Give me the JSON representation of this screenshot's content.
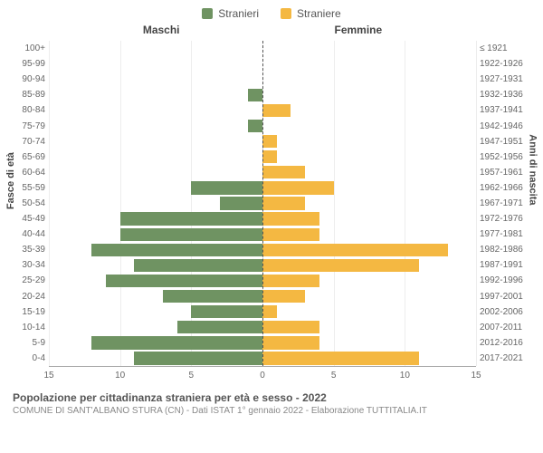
{
  "legend": {
    "male_label": "Stranieri",
    "female_label": "Straniere"
  },
  "colors": {
    "male": "#6f9362",
    "female": "#f4b842",
    "grid": "rgba(0,0,0,0.07)",
    "center_line": "#555555",
    "background": "#ffffff"
  },
  "header": {
    "left": "Maschi",
    "right": "Femmine"
  },
  "axes": {
    "y_left_title": "Fasce di età",
    "y_right_title": "Anni di nascita"
  },
  "x_axis": {
    "max": 15,
    "ticks": [
      15,
      10,
      5,
      0,
      5,
      10,
      15
    ]
  },
  "rows": [
    {
      "age": "100+",
      "year": "≤ 1921",
      "m": 0,
      "f": 0
    },
    {
      "age": "95-99",
      "year": "1922-1926",
      "m": 0,
      "f": 0
    },
    {
      "age": "90-94",
      "year": "1927-1931",
      "m": 0,
      "f": 0
    },
    {
      "age": "85-89",
      "year": "1932-1936",
      "m": 1,
      "f": 0
    },
    {
      "age": "80-84",
      "year": "1937-1941",
      "m": 0,
      "f": 2
    },
    {
      "age": "75-79",
      "year": "1942-1946",
      "m": 1,
      "f": 0
    },
    {
      "age": "70-74",
      "year": "1947-1951",
      "m": 0,
      "f": 1
    },
    {
      "age": "65-69",
      "year": "1952-1956",
      "m": 0,
      "f": 1
    },
    {
      "age": "60-64",
      "year": "1957-1961",
      "m": 0,
      "f": 3
    },
    {
      "age": "55-59",
      "year": "1962-1966",
      "m": 5,
      "f": 5
    },
    {
      "age": "50-54",
      "year": "1967-1971",
      "m": 3,
      "f": 3
    },
    {
      "age": "45-49",
      "year": "1972-1976",
      "m": 10,
      "f": 4
    },
    {
      "age": "40-44",
      "year": "1977-1981",
      "m": 10,
      "f": 4
    },
    {
      "age": "35-39",
      "year": "1982-1986",
      "m": 12,
      "f": 13
    },
    {
      "age": "30-34",
      "year": "1987-1991",
      "m": 9,
      "f": 11
    },
    {
      "age": "25-29",
      "year": "1992-1996",
      "m": 11,
      "f": 4
    },
    {
      "age": "20-24",
      "year": "1997-2001",
      "m": 7,
      "f": 3
    },
    {
      "age": "15-19",
      "year": "2002-2006",
      "m": 5,
      "f": 1
    },
    {
      "age": "10-14",
      "year": "2007-2011",
      "m": 6,
      "f": 4
    },
    {
      "age": "5-9",
      "year": "2012-2016",
      "m": 12,
      "f": 4
    },
    {
      "age": "0-4",
      "year": "2017-2021",
      "m": 9,
      "f": 11
    }
  ],
  "footer": {
    "title": "Popolazione per cittadinanza straniera per età e sesso - 2022",
    "subtitle": "COMUNE DI SANT'ALBANO STURA (CN) - Dati ISTAT 1° gennaio 2022 - Elaborazione TUTTITALIA.IT"
  }
}
